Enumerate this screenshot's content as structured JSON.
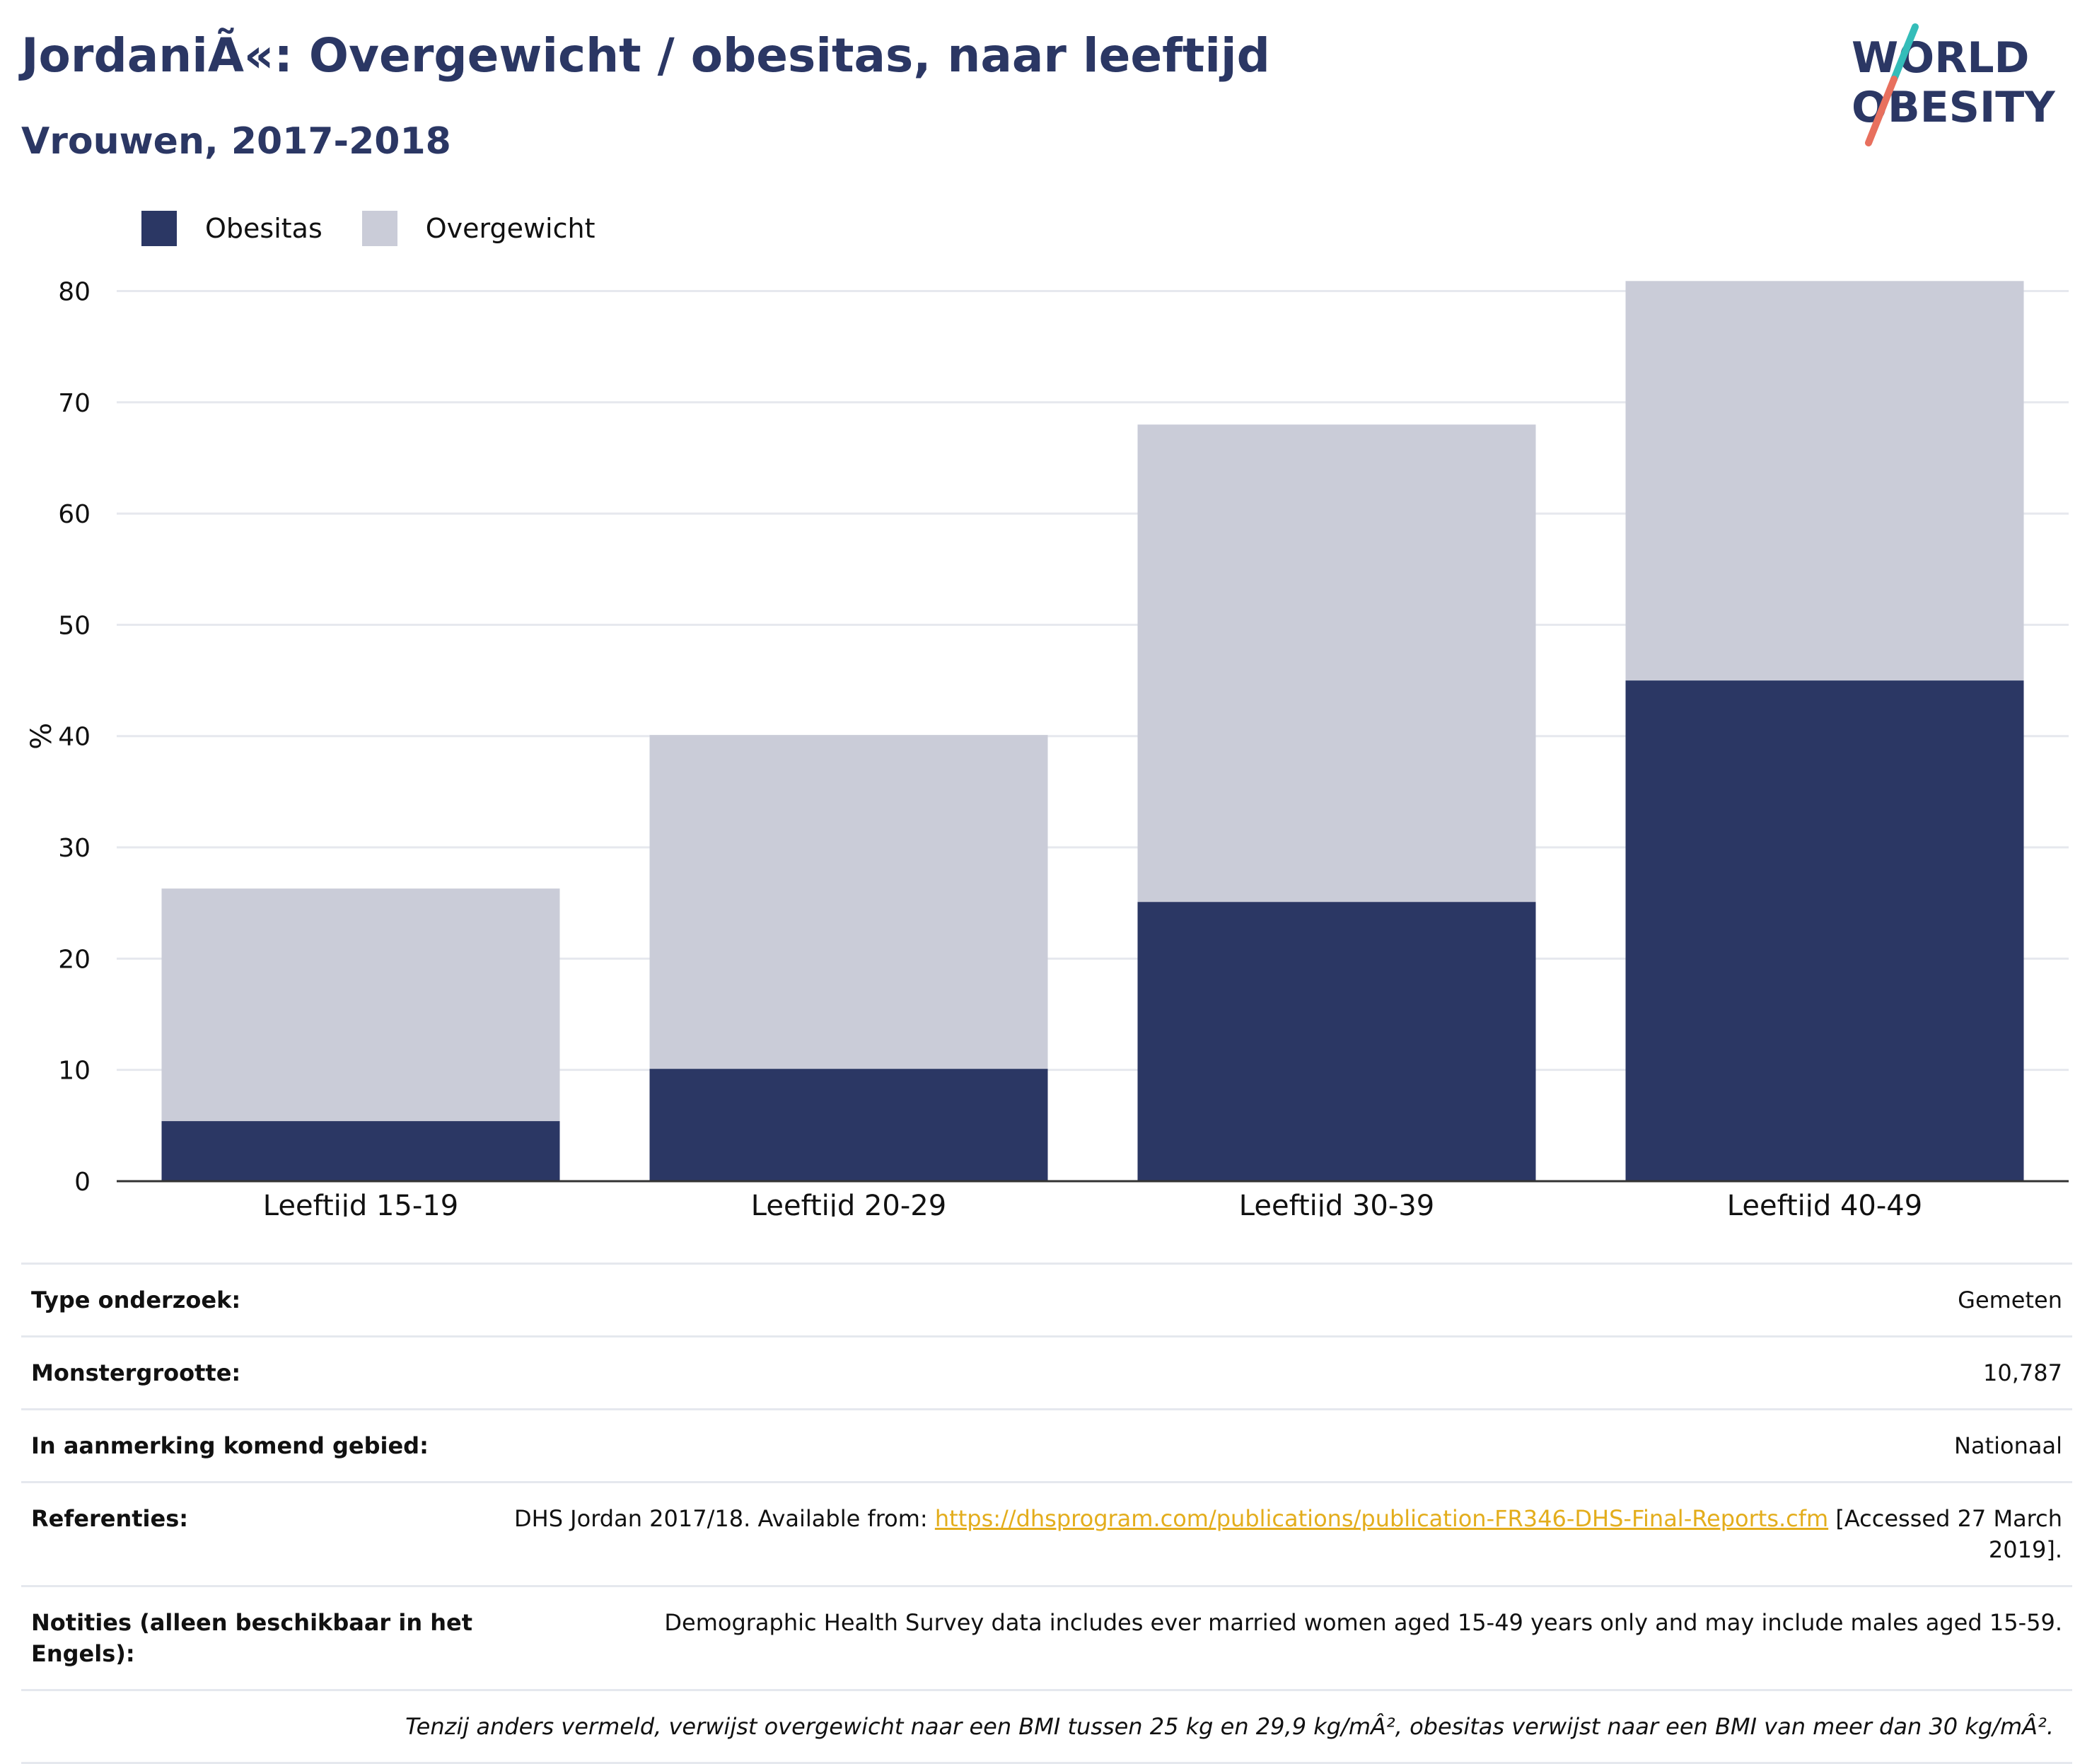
{
  "header": {
    "title": "JordaniÃ«: Overgewicht / obesitas, naar leeftijd",
    "subtitle": "Vrouwen, 2017-2018"
  },
  "logo": {
    "line1": "WORLD",
    "line2": "OBESITY"
  },
  "colors": {
    "obesitas": "#2b3764",
    "overgewicht": "#caccd8",
    "title": "#2b3764",
    "grid": "#e6e8ee",
    "axis": "#333333",
    "link": "#e3ad1c",
    "logo_teal": "#34bdb9",
    "logo_coral": "#e8705e"
  },
  "legend": [
    {
      "key": "obesitas",
      "label": "Obesitas"
    },
    {
      "key": "overgewicht",
      "label": "Overgewicht"
    }
  ],
  "chart_data": {
    "type": "bar",
    "stacked": true,
    "categories": [
      "Leeftijd 15-19",
      "Leeftijd 20-29",
      "Leeftijd 30-39",
      "Leeftijd 40-49"
    ],
    "series": [
      {
        "name": "Obesitas",
        "values": [
          5.4,
          10.1,
          25.1,
          45.0
        ]
      },
      {
        "name": "Overgewicht",
        "values": [
          20.9,
          30.0,
          42.9,
          35.9
        ]
      }
    ],
    "ylabel": "%",
    "ylim": [
      0,
      82
    ],
    "yticks": [
      0,
      10,
      20,
      30,
      40,
      50,
      60,
      70,
      80
    ],
    "grid": true,
    "legend_position": "top-left"
  },
  "info": {
    "rows": [
      {
        "key": "Type onderzoek:",
        "value": "Gemeten"
      },
      {
        "key": "Monstergrootte:",
        "value": "10,787"
      },
      {
        "key": "In aanmerking komend gebied:",
        "value": "Nationaal"
      }
    ],
    "references": {
      "key": "Referenties:",
      "prefix": "DHS Jordan 2017/18. Available from: ",
      "link": "https://dhsprogram.com/publications/publication-FR346-DHS-Final-Reports.cfm",
      "suffix": " [Accessed 27 March 2019]."
    },
    "notes": {
      "key": "Notities (alleen beschikbaar in het Engels):",
      "value": "Demographic Health Survey data includes ever married women aged 15-49 years only and may include males aged 15-59."
    },
    "footnote": "Tenzij anders vermeld, verwijst overgewicht naar een BMI tussen 25 kg en 29,9 kg/mÂ², obesitas verwijst naar een BMI van meer dan 30 kg/mÂ²."
  }
}
